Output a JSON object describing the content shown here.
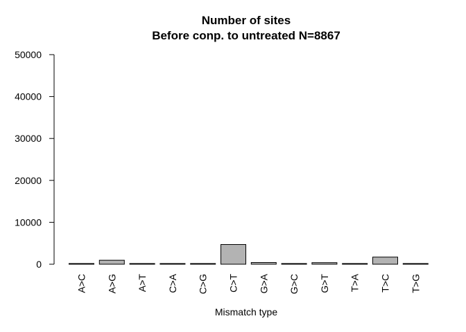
{
  "chart_data": {
    "type": "bar",
    "title": "Number of sites",
    "subtitle": "Before conp. to untreated N=8867",
    "xlabel": "Mismatch type",
    "ylabel": "",
    "ylim": [
      0,
      50000
    ],
    "yticks": [
      0,
      10000,
      20000,
      30000,
      40000,
      50000
    ],
    "ytick_labels": [
      "0",
      "10000",
      "20000",
      "30000",
      "40000",
      "50000"
    ],
    "categories": [
      "A>C",
      "A>G",
      "A>T",
      "C>A",
      "C>G",
      "C>T",
      "G>A",
      "G>C",
      "G>T",
      "T>A",
      "T>C",
      "T>G"
    ],
    "values": [
      60,
      950,
      60,
      60,
      80,
      4700,
      420,
      70,
      380,
      40,
      1700,
      40
    ],
    "bar_color": "#b3b3b3",
    "bar_edge_color": "#000000",
    "grid": false,
    "legend": "none"
  }
}
